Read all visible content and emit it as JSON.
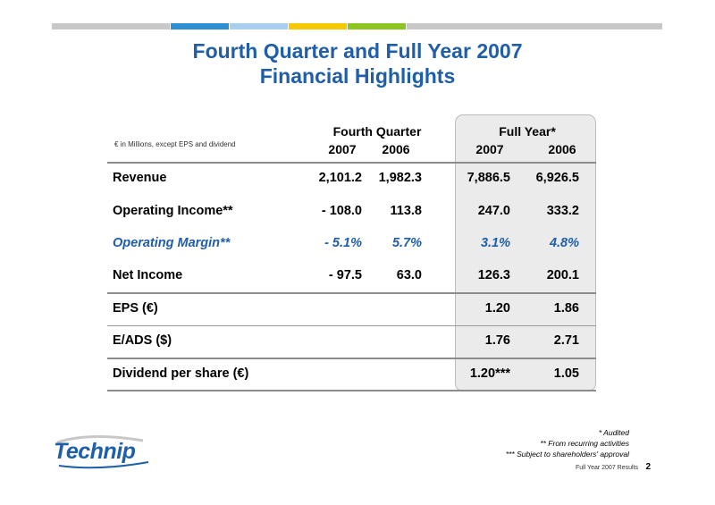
{
  "title_line1": "Fourth Quarter and Full Year 2007",
  "title_line2": "Financial Highlights",
  "units_note": "€ in Millions, except EPS and dividend",
  "header": {
    "group_q4": "Fourth Quarter",
    "group_fy": "Full Year*",
    "years": [
      "2007",
      "2006",
      "2007",
      "2006"
    ]
  },
  "rows": [
    {
      "label": "Revenue",
      "q4_2007": "2,101.2",
      "q4_2006": "1,982.3",
      "fy_2007": "7,886.5",
      "fy_2006": "6,926.5"
    },
    {
      "label": "Operating Income**",
      "q4_2007": "- 108.0",
      "q4_2006": "113.8",
      "fy_2007": "247.0",
      "fy_2006": "333.2"
    },
    {
      "label": "Operating Margin**",
      "q4_2007": "- 5.1%",
      "q4_2006": "5.7%",
      "fy_2007": "3.1%",
      "fy_2006": "4.8%"
    },
    {
      "label": "Net Income",
      "q4_2007": "- 97.5",
      "q4_2006": "63.0",
      "fy_2007": "126.3",
      "fy_2006": "200.1"
    },
    {
      "label": "EPS (€)",
      "q4_2007": "",
      "q4_2006": "",
      "fy_2007": "1.20",
      "fy_2006": "1.86"
    },
    {
      "label": "E/ADS ($)",
      "q4_2007": "",
      "q4_2006": "",
      "fy_2007": "1.76",
      "fy_2006": "2.71"
    },
    {
      "label": "Dividend per share (€)",
      "q4_2007": "",
      "q4_2006": "",
      "fy_2007": "1.20***",
      "fy_2006": "1.05"
    }
  ],
  "notes": [
    "* Audited",
    "** From recurring activities",
    "*** Subject to shareholders' approval"
  ],
  "logo_text": "Technip",
  "footer_text": "Full Year 2007 Results",
  "page_number": "2",
  "colors": {
    "title_blue": "#1f5ea8",
    "panel_gray": "#ebebeb"
  }
}
